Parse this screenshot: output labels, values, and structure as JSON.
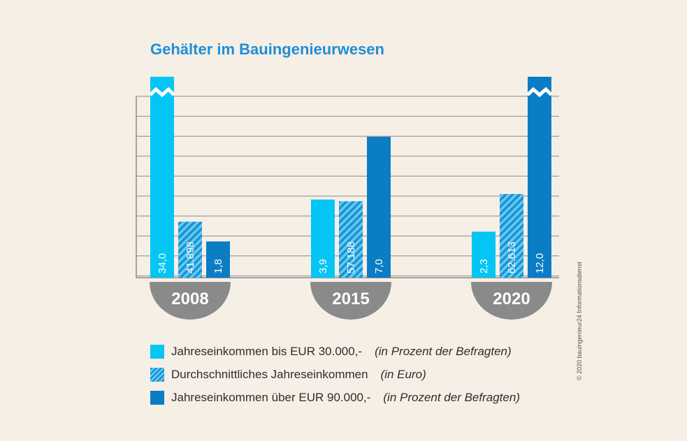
{
  "title": "Gehälter im Bauingenieurwesen",
  "colors": {
    "background": "#f6efe6",
    "title": "#1f8fd6",
    "series_light": "#05c5f5",
    "series_hatched": "#1f8fd6",
    "series_dark": "#0a7dc5",
    "year_badge": "#8a8a8a",
    "grid": "#8a8a8a"
  },
  "chart_data": {
    "type": "bar",
    "title": "Gehälter im Bauingenieurwesen",
    "categories": [
      "2008",
      "2015",
      "2020"
    ],
    "series": [
      {
        "name": "Jahreseinkommen bis EUR 30.000,-",
        "unit_note": "(in Prozent der Befragten)",
        "values": [
          34.0,
          3.9,
          2.3
        ],
        "labels": [
          "34,0",
          "3,9",
          "2,3"
        ],
        "axis_break": [
          true,
          false,
          false
        ]
      },
      {
        "name": "Durchschnittliches Jahreseinkommen",
        "unit_note": "(in Euro)",
        "values": [
          41898,
          57188,
          62613
        ],
        "labels": [
          "41.898",
          "57.188",
          "62.613"
        ],
        "axis_break": [
          false,
          false,
          false
        ]
      },
      {
        "name": "Jahreseinkommen über EUR 90.000,-",
        "unit_note": "(in Prozent der Befragten)",
        "values": [
          1.8,
          7.0,
          12.0
        ],
        "labels": [
          "1,8",
          "7,0",
          "12,0"
        ],
        "axis_break": [
          false,
          false,
          true
        ]
      }
    ],
    "grid": true,
    "legend_position": "bottom-left",
    "note": "bars are not drawn to a common scale; tallest bars are shown truncated with a break symbol"
  },
  "legend": [
    {
      "label": "Jahreseinkommen bis EUR 30.000,-",
      "note": "(in Prozent der Befragten)"
    },
    {
      "label": "Durchschnittliches Jahreseinkommen",
      "note": "(in Euro)"
    },
    {
      "label": "Jahreseinkommen über EUR 90.000,-",
      "note": "(in Prozent der Befragten)"
    }
  ],
  "credit": "© 2020 bauingenieur24 Informationsdienst"
}
